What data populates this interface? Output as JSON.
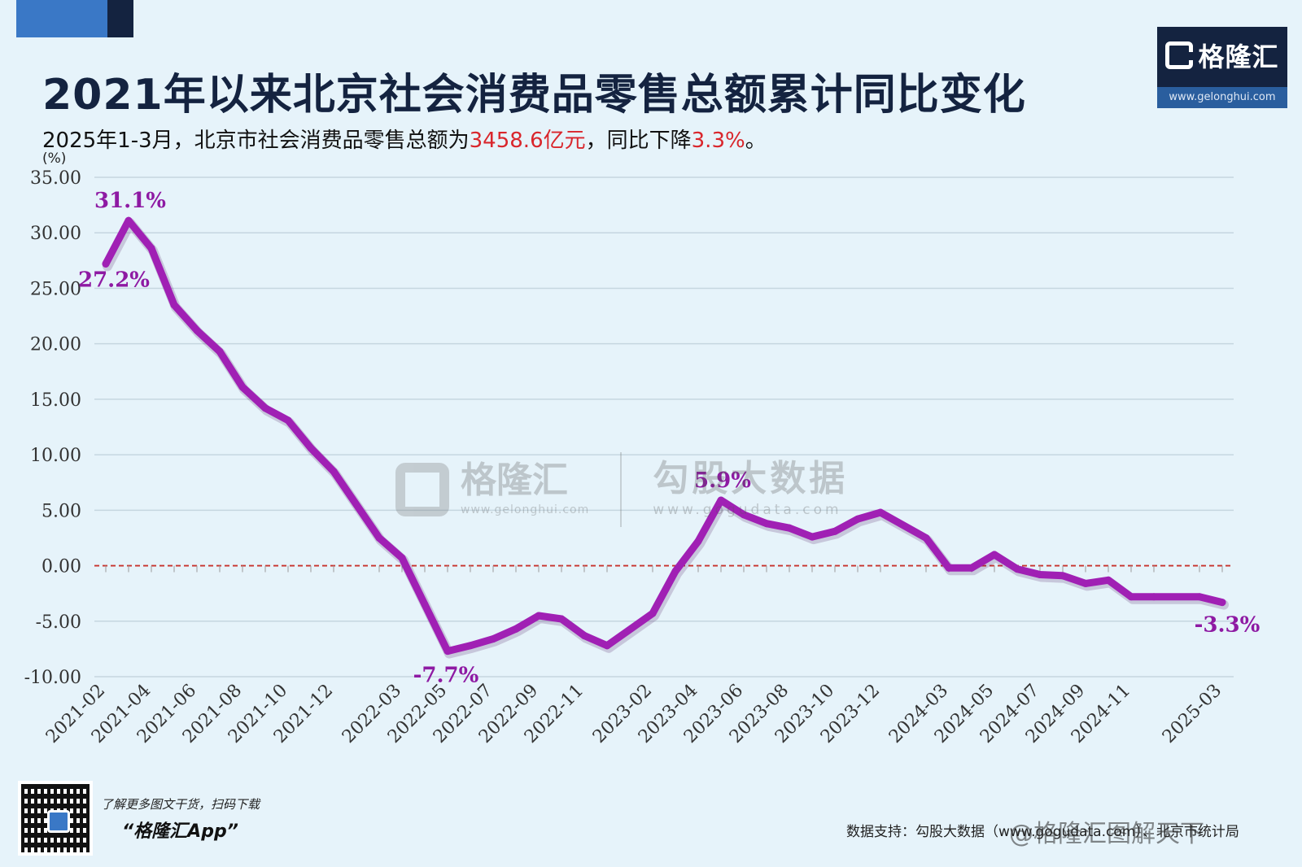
{
  "header": {
    "title": "2021年以来北京社会消费品零售总额累计同比变化",
    "subtitle_pre": "2025年1-3月，北京市社会消费品零售总额为",
    "subtitle_value1": "3458.6亿元",
    "subtitle_mid": "，同比下降",
    "subtitle_value2": "3.3%",
    "subtitle_end": "。"
  },
  "logo": {
    "name": "格隆汇",
    "url": "www.gelonghui.com"
  },
  "watermark": {
    "left_name": "格隆汇",
    "left_url": "www.gelonghui.com",
    "right_name": "勾股大数据",
    "right_url": "www.gogudata.com"
  },
  "footer": {
    "promo_line1": "了解更多图文干货，扫码下载",
    "promo_line2": "“格隆汇App”",
    "source": "数据支持：勾股大数据（www.gogudata.com）、北京市统计局",
    "weibo": "@格隆汇图解天下"
  },
  "colors": {
    "line": "#a020b4",
    "zero_line": "#c8322c",
    "grid": "#c5d6e0",
    "title": "#142340",
    "highlight": "#d9262c"
  },
  "chart_data": {
    "type": "line",
    "ylabel": "(%)",
    "ylim": [
      -10,
      35
    ],
    "yticks": [
      "35.00",
      "30.00",
      "25.00",
      "20.00",
      "15.00",
      "10.00",
      "5.00",
      "0.00",
      "-5.00",
      "-10.00"
    ],
    "grid": true,
    "xtick_labels": [
      "2021-02",
      "2021-04",
      "2021-06",
      "2021-08",
      "2021-10",
      "2021-12",
      "2022-03",
      "2022-05",
      "2022-07",
      "2022-09",
      "2022-11",
      "2023-02",
      "2023-04",
      "2023-06",
      "2023-08",
      "2023-10",
      "2023-12",
      "2024-03",
      "2024-05",
      "2024-07",
      "2024-09",
      "2024-11",
      "2025-03"
    ],
    "x": [
      "2021-02",
      "2021-03",
      "2021-04",
      "2021-05",
      "2021-06",
      "2021-07",
      "2021-08",
      "2021-09",
      "2021-10",
      "2021-11",
      "2021-12",
      "2022-02",
      "2022-03",
      "2022-04",
      "2022-05",
      "2022-06",
      "2022-07",
      "2022-08",
      "2022-09",
      "2022-10",
      "2022-11",
      "2022-12",
      "2023-02",
      "2023-03",
      "2023-04",
      "2023-05",
      "2023-06",
      "2023-07",
      "2023-08",
      "2023-09",
      "2023-10",
      "2023-11",
      "2023-12",
      "2024-02",
      "2024-03",
      "2024-04",
      "2024-05",
      "2024-06",
      "2024-07",
      "2024-08",
      "2024-09",
      "2024-10",
      "2024-11",
      "2024-12",
      "2025-02",
      "2025-03"
    ],
    "values": [
      27.2,
      31.1,
      28.6,
      23.5,
      21.2,
      19.3,
      16.1,
      14.2,
      13.1,
      10.6,
      8.5,
      2.5,
      0.7,
      -3.5,
      -7.7,
      -7.2,
      -6.6,
      -5.7,
      -4.5,
      -4.8,
      -6.3,
      -7.2,
      -4.3,
      -0.5,
      2.2,
      5.9,
      4.6,
      3.8,
      3.4,
      2.6,
      3.1,
      4.2,
      4.8,
      2.5,
      -0.2,
      -0.2,
      1.0,
      -0.3,
      -0.8,
      -0.9,
      -1.6,
      -1.3,
      -2.8,
      -2.8,
      -2.8,
      -3.3
    ],
    "reference_line": 0,
    "annotations": [
      {
        "label": "27.2%",
        "index": 0
      },
      {
        "label": "31.1%",
        "index": 1
      },
      {
        "label": "-7.7%",
        "index": 14
      },
      {
        "label": "5.9%",
        "index": 25
      },
      {
        "label": "-3.3%",
        "index": 45
      }
    ]
  }
}
